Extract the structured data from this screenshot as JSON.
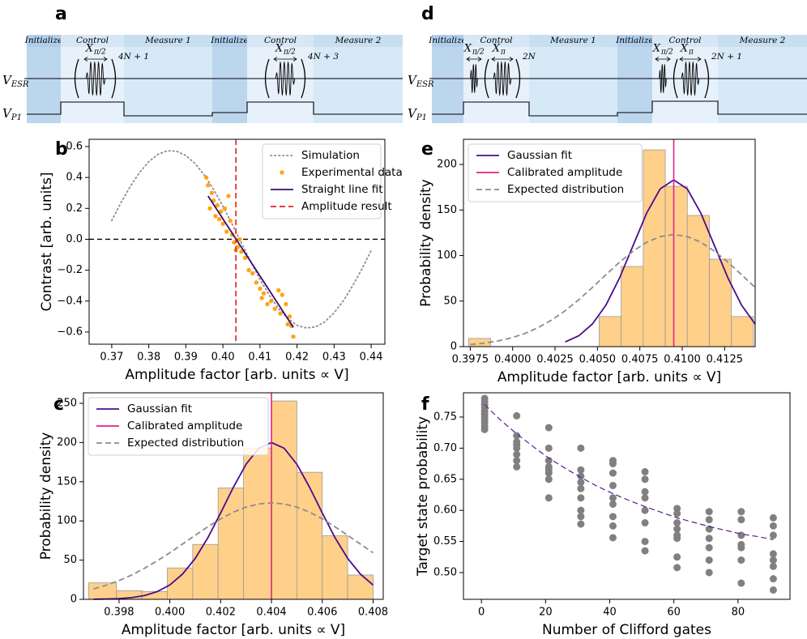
{
  "pulse_diagrams": [
    {
      "label": "a",
      "segments": [
        "Initialize",
        "Control",
        "Measure 1",
        "Initialize",
        "Control",
        "Measure 2"
      ],
      "row_labels": [
        {
          "base": "V",
          "sub": "ESR"
        },
        {
          "base": "V",
          "sub": "P1"
        }
      ],
      "gates": [
        {
          "base": "X",
          "sub": "π/2"
        }
      ],
      "repeats": [
        "4N + 1",
        "4N + 3"
      ]
    },
    {
      "label": "d",
      "segments": [
        "Initialize",
        "Control",
        "Measure 1",
        "Initialize",
        "Control",
        "Measure 2"
      ],
      "row_labels": [
        {
          "base": "V",
          "sub": "ESR"
        },
        {
          "base": "V",
          "sub": "P1"
        }
      ],
      "gates": [
        {
          "base": "X",
          "sub": "π/2"
        },
        {
          "base": "X",
          "sub": "π"
        }
      ],
      "repeats": [
        "2N",
        "2N + 1"
      ]
    }
  ],
  "chart_data": [
    {
      "label": "b",
      "type": "scatter",
      "xlabel": "Amplitude factor [arb. units ∝ V]",
      "ylabel": "Contrast [arb. units]",
      "xlim": [
        0.3639,
        0.4437
      ],
      "ylim": [
        -0.679,
        0.647
      ],
      "xticks": [
        0.37,
        0.38,
        0.39,
        {
          "value": 0.4,
          "label": "0.40"
        },
        0.41,
        0.42,
        0.43,
        0.44
      ],
      "yticks": [
        {
          "value": -0.6,
          "label": "−0.6"
        },
        {
          "value": -0.4,
          "label": "−0.4"
        },
        {
          "value": -0.2,
          "label": "−0.2"
        },
        {
          "value": 0,
          "label": "0.0"
        },
        0.2,
        0.4,
        0.6
      ],
      "hline": 0,
      "legend": "upper right",
      "series": [
        {
          "name": "Simulation",
          "style": "dotted",
          "color": "#8c8c8c",
          "x": [
            0.37,
            0.3725,
            0.375,
            0.3775,
            0.38,
            0.3825,
            0.385,
            0.3875,
            0.39,
            0.3925,
            0.395,
            0.3975,
            0.4,
            0.4025,
            0.405,
            0.4075,
            0.41,
            0.4125,
            0.415,
            0.4175,
            0.42,
            0.4225,
            0.425,
            0.4275,
            0.43,
            0.4325,
            0.435,
            0.4375,
            0.44
          ],
          "values": [
            0.121,
            0.237,
            0.342,
            0.432,
            0.502,
            0.55,
            0.573,
            0.57,
            0.542,
            0.49,
            0.415,
            0.322,
            0.214,
            0.097,
            -0.024,
            -0.144,
            -0.259,
            -0.362,
            -0.448,
            -0.512,
            -0.557,
            -0.574,
            -0.567,
            -0.534,
            -0.476,
            -0.398,
            -0.301,
            -0.192,
            -0.073
          ]
        },
        {
          "name": "Experimental data",
          "style": "points",
          "color": "#ffa31a",
          "x": [
            0.3955,
            0.396,
            0.3965,
            0.397,
            0.3975,
            0.398,
            0.3985,
            0.399,
            0.3995,
            0.4,
            0.4005,
            0.401,
            0.4015,
            0.402,
            0.4025,
            0.403,
            0.4035,
            0.404,
            0.4045,
            0.405,
            0.406,
            0.407,
            0.408,
            0.409,
            0.41,
            0.4105,
            0.411,
            0.412,
            0.413,
            0.414,
            0.415,
            0.4155,
            0.416,
            0.417,
            0.4175,
            0.418,
            0.4185,
            0.419
          ],
          "values": [
            0.4,
            0.35,
            0.2,
            0.3,
            0.25,
            0.15,
            0.22,
            0.13,
            0.18,
            0.1,
            0.2,
            0.05,
            0.28,
            0.12,
            0.03,
            -0.02,
            -0.07,
            -0.05,
            0.0,
            -0.08,
            -0.12,
            -0.2,
            -0.22,
            -0.28,
            -0.32,
            -0.38,
            -0.35,
            -0.42,
            -0.4,
            -0.45,
            -0.33,
            -0.48,
            -0.36,
            -0.42,
            -0.55,
            -0.5,
            -0.56,
            -0.63
          ]
        },
        {
          "name": "Straight line fit",
          "style": "solid",
          "color": "#3b0a6e",
          "x": [
            0.396,
            0.419
          ],
          "values": [
            0.28,
            -0.57
          ]
        },
        {
          "name": "Amplitude result",
          "style": "dashed",
          "vertical": true,
          "color": "#e02020",
          "x": [
            0.4035
          ]
        }
      ]
    },
    {
      "label": "c",
      "type": "histogram",
      "xlabel": "Amplitude factor [arb. units ∝ V]",
      "ylabel": "Probability density",
      "xlim": [
        0.3966,
        0.4084
      ],
      "ylim": [
        0,
        263.4
      ],
      "xticks": [
        0.398,
        {
          "value": 0.4,
          "label": "0.400"
        },
        0.402,
        0.404,
        0.406,
        0.408
      ],
      "yticks": [
        0,
        50,
        100,
        150,
        200,
        250
      ],
      "legend": "upper left",
      "color": "#ffd08a",
      "edgecolor": "#9a9a9a",
      "bins": [
        0.3968,
        0.3979,
        0.3989,
        0.3999,
        0.4009,
        0.4019,
        0.4029,
        0.404,
        0.405,
        0.406,
        0.407,
        0.408
      ],
      "values": [
        21,
        11,
        10,
        40,
        70,
        142,
        193,
        253,
        162,
        81,
        31
      ],
      "series": [
        {
          "name": "Gaussian fit",
          "style": "solid",
          "color": "#4b0c8c",
          "x": [
            0.397,
            0.3975,
            0.398,
            0.3985,
            0.399,
            0.3995,
            0.4,
            0.4005,
            0.401,
            0.4015,
            0.402,
            0.4025,
            0.403,
            0.4035,
            0.404,
            0.4045,
            0.405,
            0.4055,
            0.406,
            0.4065,
            0.407,
            0.4075,
            0.408
          ],
          "values": [
            0.1,
            0.4,
            0.9,
            2.2,
            4.8,
            9.8,
            18.3,
            32.2,
            52.2,
            78.7,
            110.1,
            142.9,
            172.3,
            192.7,
            200,
            192.7,
            172.3,
            142.9,
            110.1,
            78.7,
            52.2,
            32.2,
            18.3
          ]
        },
        {
          "name": "Calibrated amplitude",
          "style": "solid",
          "vertical": true,
          "color": "#e0218a",
          "x": [
            0.404
          ]
        },
        {
          "name": "Expected distribution",
          "style": "dashed",
          "color": "#8c8c8c",
          "x": [
            0.397,
            0.3975,
            0.398,
            0.3985,
            0.399,
            0.3995,
            0.4,
            0.4005,
            0.401,
            0.4015,
            0.402,
            0.4025,
            0.403,
            0.4035,
            0.404,
            0.4045,
            0.405,
            0.4055,
            0.406,
            0.4065,
            0.407,
            0.4075,
            0.408
          ],
          "values": [
            13.3,
            18,
            23.9,
            31.1,
            39.5,
            49,
            59.4,
            70.5,
            81.7,
            92.6,
            102.6,
            111.1,
            117.6,
            121.6,
            123,
            121.6,
            117.6,
            111.1,
            102.6,
            92.6,
            81.7,
            70.5,
            59.4
          ]
        }
      ]
    },
    {
      "label": "e",
      "type": "histogram",
      "xlabel": "Amplitude factor [arb. units ∝ V]",
      "ylabel": "Probability density",
      "xlim": [
        0.3971,
        0.4143
      ],
      "ylim": [
        0,
        227.6
      ],
      "xticks": [
        0.3975,
        {
          "value": 0.4,
          "label": "0.4000"
        },
        0.4025,
        {
          "value": 0.405,
          "label": "0.4050"
        },
        0.4075,
        {
          "value": 0.41,
          "label": "0.4100"
        },
        0.4125
      ],
      "yticks": [
        0,
        50,
        100,
        150,
        200
      ],
      "legend": "upper left",
      "color": "#ffd08a",
      "edgecolor": "#9a9a9a",
      "bins": [
        0.3974,
        0.3987,
        0.3999,
        0.4012,
        0.4025,
        0.4038,
        0.4051,
        0.4064,
        0.4077,
        0.409,
        0.4103,
        0.4116,
        0.4129,
        0.4142
      ],
      "values": [
        9,
        0,
        0,
        0,
        0,
        0,
        33,
        88,
        216,
        176,
        144,
        96,
        33
      ],
      "series": [
        {
          "name": "Gaussian fit",
          "style": "solid",
          "color": "#4b0c8c",
          "x": [
            0.4031,
            0.4039,
            0.4047,
            0.4055,
            0.4063,
            0.4071,
            0.4079,
            0.4087,
            0.4095,
            0.4103,
            0.4111,
            0.4119,
            0.4127,
            0.4135,
            0.4143
          ],
          "values": [
            5.2,
            11.9,
            24.8,
            45.5,
            75.2,
            110.9,
            146.5,
            173.1,
            183,
            173.1,
            146.5,
            110.9,
            75.2,
            45.5,
            24.8
          ]
        },
        {
          "name": "Calibrated amplitude",
          "style": "solid",
          "vertical": true,
          "color": "#e0218a",
          "x": [
            0.4095
          ]
        },
        {
          "name": "Expected distribution",
          "style": "dashed",
          "color": "#8c8c8c",
          "x": [
            0.3975,
            0.3983,
            0.3991,
            0.3999,
            0.4007,
            0.4015,
            0.4023,
            0.4031,
            0.4039,
            0.4047,
            0.4055,
            0.4063,
            0.4071,
            0.4079,
            0.4087,
            0.4095,
            0.4103,
            0.4111,
            0.4119,
            0.4127,
            0.4135,
            0.4143
          ],
          "values": [
            2.3,
            3.8,
            6.1,
            9.5,
            14.3,
            20.8,
            29.2,
            39.4,
            51.5,
            64.9,
            78.9,
            92.6,
            104.8,
            114.6,
            120.8,
            123,
            120.8,
            114.6,
            104.8,
            92.6,
            78.9,
            64.9
          ]
        }
      ]
    },
    {
      "label": "f",
      "type": "scatter",
      "xlabel": "Number of Clifford gates",
      "ylabel": "Target state probability",
      "xlim": [
        -5.6,
        96.2
      ],
      "ylim": [
        0.457,
        0.789
      ],
      "xticks": [
        0,
        20,
        40,
        60,
        80
      ],
      "yticks": [
        {
          "value": 0.5,
          "label": "0.50"
        },
        0.55,
        {
          "value": 0.6,
          "label": "0.60"
        },
        0.65,
        {
          "value": 0.7,
          "label": "0.70"
        },
        0.75
      ],
      "series": [
        {
          "style": "points",
          "color": "#808080",
          "x": [
            1,
            1,
            1,
            1,
            1,
            1,
            1,
            1,
            1,
            1,
            1,
            11,
            11,
            11,
            11,
            11,
            11,
            11,
            11,
            21,
            21,
            21,
            21,
            21,
            21,
            21,
            21,
            31,
            31,
            31,
            31,
            31,
            31,
            31,
            31,
            31,
            41,
            41,
            41,
            41,
            41,
            41,
            41,
            41,
            41,
            51,
            51,
            51,
            51,
            51,
            51,
            51,
            51,
            61,
            61,
            61,
            61,
            61,
            61,
            61,
            61,
            71,
            71,
            71,
            71,
            71,
            71,
            71,
            81,
            81,
            81,
            81,
            81,
            81,
            81,
            91,
            91,
            91,
            91,
            91,
            91,
            91,
            91
          ],
          "values": [
            0.78,
            0.775,
            0.77,
            0.765,
            0.76,
            0.755,
            0.75,
            0.745,
            0.74,
            0.735,
            0.73,
            0.752,
            0.72,
            0.71,
            0.705,
            0.7,
            0.69,
            0.68,
            0.67,
            0.733,
            0.7,
            0.68,
            0.67,
            0.665,
            0.66,
            0.65,
            0.62,
            0.7,
            0.665,
            0.655,
            0.645,
            0.635,
            0.62,
            0.6,
            0.59,
            0.578,
            0.68,
            0.675,
            0.66,
            0.64,
            0.62,
            0.61,
            0.59,
            0.575,
            0.556,
            0.662,
            0.65,
            0.63,
            0.62,
            0.6,
            0.58,
            0.55,
            0.535,
            0.603,
            0.595,
            0.58,
            0.57,
            0.56,
            0.555,
            0.525,
            0.508,
            0.598,
            0.585,
            0.57,
            0.555,
            0.54,
            0.52,
            0.5,
            0.598,
            0.585,
            0.56,
            0.545,
            0.54,
            0.52,
            0.483,
            0.588,
            0.575,
            0.56,
            0.53,
            0.52,
            0.51,
            0.49,
            0.472
          ]
        },
        {
          "style": "dashed",
          "color": "#5b1a9a",
          "x": [
            1,
            6,
            11,
            16,
            21,
            26,
            31,
            36,
            41,
            46,
            51,
            56,
            61,
            66,
            71,
            76,
            81,
            86,
            91
          ],
          "values": [
            0.77,
            0.745,
            0.723,
            0.703,
            0.684,
            0.668,
            0.653,
            0.639,
            0.627,
            0.616,
            0.606,
            0.597,
            0.588,
            0.581,
            0.574,
            0.568,
            0.562,
            0.558,
            0.553
          ]
        }
      ]
    }
  ]
}
